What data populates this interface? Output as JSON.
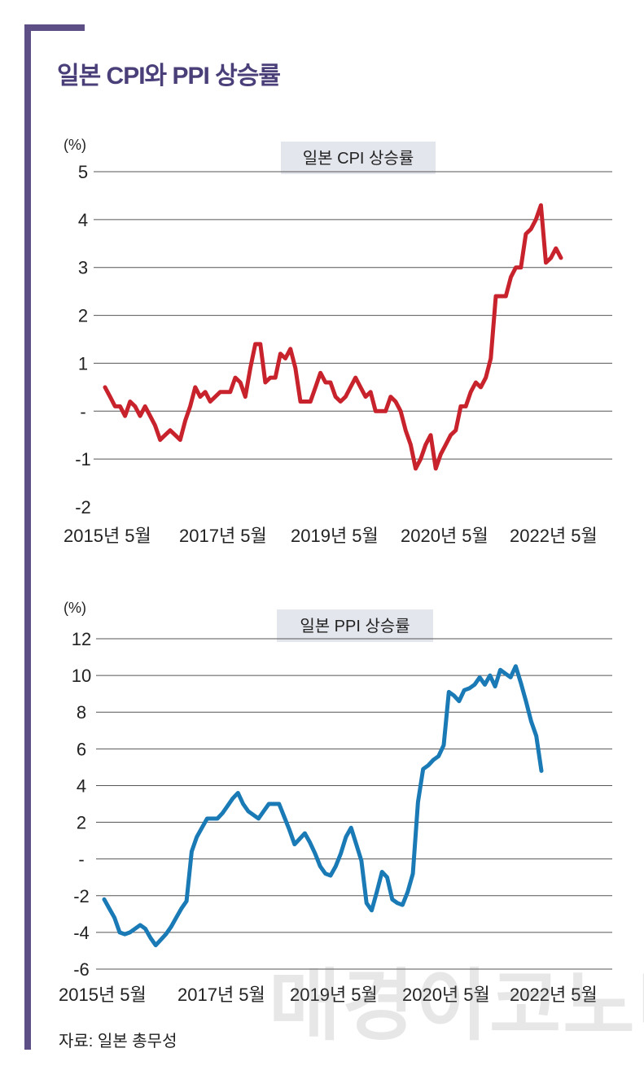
{
  "title": "일본 CPI와 PPI 상승률",
  "source": "자료: 일본 총무성",
  "watermark": "매경이코노미",
  "chart_data": [
    {
      "type": "line",
      "title": "일본 CPI 상승률",
      "unit_label": "(%)",
      "y_tick_labels": [
        "5",
        "4",
        "3",
        "2",
        "1",
        "-",
        "-1",
        "-2"
      ],
      "y_ticks": [
        5,
        4,
        3,
        2,
        1,
        0,
        -1,
        -2
      ],
      "ylim": [
        -2,
        5
      ],
      "x_tick_labels": [
        "2015년 5월",
        "2017년 5월",
        "2019년 5월",
        "2020년 5월",
        "2022년 5월"
      ],
      "color": "#c8232c",
      "series": [
        {
          "name": "CPI",
          "values": [
            0.5,
            0.3,
            0.1,
            0.1,
            -0.1,
            0.2,
            0.1,
            -0.1,
            0.1,
            -0.1,
            -0.3,
            -0.6,
            -0.5,
            -0.4,
            -0.5,
            -0.6,
            -0.2,
            0.1,
            0.5,
            0.3,
            0.4,
            0.2,
            0.3,
            0.4,
            0.4,
            0.4,
            0.7,
            0.6,
            0.3,
            0.9,
            1.4,
            1.4,
            0.6,
            0.7,
            0.7,
            1.2,
            1.1,
            1.3,
            0.9,
            0.2,
            0.2,
            0.2,
            0.5,
            0.8,
            0.6,
            0.6,
            0.3,
            0.2,
            0.3,
            0.5,
            0.7,
            0.5,
            0.3,
            0.4,
            0,
            0,
            0,
            0.3,
            0.2,
            0,
            -0.4,
            -0.7,
            -1.2,
            -1,
            -0.7,
            -0.5,
            -1.2,
            -0.9,
            -0.7,
            -0.5,
            -0.4,
            0.1,
            0.1,
            0.4,
            0.6,
            0.5,
            0.7,
            1.1,
            2.4,
            2.4,
            2.4,
            2.8,
            3,
            3,
            3.7,
            3.8,
            4,
            4.3,
            3.1,
            3.2,
            3.4,
            3.2
          ]
        }
      ]
    },
    {
      "type": "line",
      "title": "일본 PPI 상승률",
      "unit_label": "(%)",
      "y_tick_labels": [
        "12",
        "10",
        "8",
        "6",
        "4",
        "2",
        "-",
        "-2",
        "-4",
        "-6"
      ],
      "y_ticks": [
        12,
        10,
        8,
        6,
        4,
        2,
        0,
        -2,
        -4,
        -6
      ],
      "ylim": [
        -6,
        12
      ],
      "x_tick_labels": [
        "2015년 5월",
        "2017년 5월",
        "2019년 5월",
        "2020년 5월",
        "2022년 5월"
      ],
      "color": "#1a7ab5",
      "series": [
        {
          "name": "PPI",
          "values": [
            -2.2,
            -2.7,
            -3.2,
            -4,
            -4.1,
            -4,
            -3.8,
            -3.6,
            -3.8,
            -4.3,
            -4.7,
            -4.4,
            -4.1,
            -3.7,
            -3.2,
            -2.7,
            -2.3,
            0.4,
            1.2,
            1.7,
            2.2,
            2.2,
            2.2,
            2.5,
            2.9,
            3.3,
            3.6,
            3,
            2.6,
            2.4,
            2.2,
            2.6,
            3,
            3,
            3,
            2.3,
            1.6,
            0.8,
            1.1,
            1.4,
            0.9,
            0.3,
            -0.4,
            -0.8,
            -0.9,
            -0.4,
            0.3,
            1.2,
            1.7,
            0.8,
            -0.1,
            -2.4,
            -2.8,
            -1.8,
            -0.7,
            -1,
            -2.2,
            -2.4,
            -2.5,
            -1.8,
            -0.8,
            3.1,
            4.9,
            5.1,
            5.4,
            5.6,
            6.2,
            9.1,
            8.9,
            8.6,
            9.2,
            9.3,
            9.5,
            9.9,
            9.5,
            10,
            9.4,
            10.3,
            10.1,
            9.9,
            10.5,
            9.6,
            8.6,
            7.5,
            6.7,
            4.8
          ]
        }
      ]
    }
  ]
}
